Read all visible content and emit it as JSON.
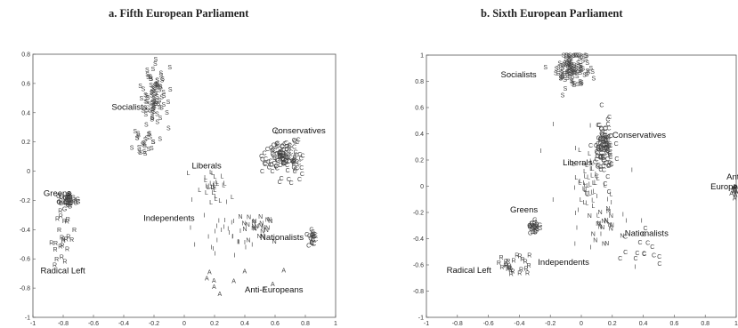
{
  "chart_data": [
    {
      "type": "scatter",
      "title": "a. Fifth European Parliament",
      "xlim": [
        -1,
        1
      ],
      "ylim": [
        -1,
        0.8
      ],
      "xticks": [
        "-1",
        "-0.8",
        "-0.6",
        "-0.4",
        "-0.2",
        "0",
        "0.2",
        "0.4",
        "0.6",
        "0.8",
        "1"
      ],
      "xtick_values": [
        -1,
        -0.8,
        -0.6,
        -0.4,
        -0.2,
        0,
        0.2,
        0.4,
        0.6,
        0.8,
        1
      ],
      "yticks": [
        "0.8",
        "0.6",
        "0.4",
        "0.2",
        "0",
        "-0.2",
        "-0.4",
        "-0.6",
        "-0.8",
        "-1"
      ],
      "ytick_values": [
        0.8,
        0.6,
        0.4,
        0.2,
        0,
        -0.2,
        -0.4,
        -0.6,
        -0.8,
        -1
      ],
      "groups": [
        {
          "name": "Socialists",
          "label_x": -0.48,
          "label_y": 0.42,
          "clusters": [
            {
              "letter": "S",
              "cx": -0.2,
              "cy": 0.5,
              "sx": 0.04,
              "sy": 0.1,
              "n": 85
            },
            {
              "letter": "S",
              "cx": -0.27,
              "cy": 0.2,
              "sx": 0.05,
              "sy": 0.05,
              "n": 25
            }
          ]
        },
        {
          "name": "Conservatives",
          "label_x": 0.58,
          "label_y": 0.26,
          "clusters": [
            {
              "letter": "C",
              "cx": 0.65,
              "cy": 0.1,
              "sx": 0.06,
              "sy": 0.06,
              "n": 120
            },
            {
              "letter": "C",
              "cx": 0.85,
              "cy": -0.45,
              "sx": 0.015,
              "sy": 0.03,
              "n": 22
            }
          ]
        },
        {
          "name": "Liberals",
          "label_x": 0.05,
          "label_y": 0.02,
          "clusters": [
            {
              "letter": "L",
              "cx": 0.18,
              "cy": -0.1,
              "sx": 0.05,
              "sy": 0.05,
              "n": 30
            }
          ]
        },
        {
          "name": "Greens",
          "label_x": -0.93,
          "label_y": -0.17,
          "clusters": [
            {
              "letter": "G",
              "cx": -0.76,
              "cy": -0.2,
              "sx": 0.03,
              "sy": 0.025,
              "n": 40
            }
          ]
        },
        {
          "name": "Independents",
          "label_x": -0.27,
          "label_y": -0.34,
          "clusters": [
            {
              "letter": "I",
              "cx": 0.3,
              "cy": -0.45,
              "sx": 0.1,
              "sy": 0.12,
              "n": 30
            }
          ]
        },
        {
          "name": "Nationalists",
          "label_x": 0.5,
          "label_y": -0.47,
          "clusters": [
            {
              "letter": "N",
              "cx": 0.47,
              "cy": -0.37,
              "sx": 0.06,
              "sy": 0.06,
              "n": 25
            }
          ]
        },
        {
          "name": "Radical Left",
          "label_x": -0.95,
          "label_y": -0.7,
          "clusters": [
            {
              "letter": "R",
              "cx": -0.8,
              "cy": -0.45,
              "sx": 0.03,
              "sy": 0.1,
              "n": 25
            }
          ]
        },
        {
          "name": "Anti-Europeans",
          "label_x": 0.4,
          "label_y": -0.83,
          "clusters": [
            {
              "letter": "A",
              "cx": 0.35,
              "cy": -0.7,
              "sx": 0.15,
              "sy": 0.08,
              "n": 10
            }
          ]
        }
      ]
    },
    {
      "type": "scatter",
      "title": "b. Sixth European Parliament",
      "xlim": [
        -1,
        1
      ],
      "ylim": [
        -1,
        1
      ],
      "xticks": [
        "-1",
        "-0.8",
        "-0.6",
        "-0.4",
        "-0.2",
        "0",
        "0.2",
        "0.4",
        "0.6",
        "0.8",
        "1"
      ],
      "xtick_values": [
        -1,
        -0.8,
        -0.6,
        -0.4,
        -0.2,
        0,
        0.2,
        0.4,
        0.6,
        0.8,
        1
      ],
      "yticks": [
        "1",
        "0.8",
        "0.6",
        "0.4",
        "0.2",
        "0",
        "-0.2",
        "-0.4",
        "-0.6",
        "-0.8",
        "-1"
      ],
      "ytick_values": [
        1,
        0.8,
        0.6,
        0.4,
        0.2,
        0,
        -0.2,
        -0.4,
        -0.6,
        -0.8,
        -1
      ],
      "groups": [
        {
          "name": "Socialists",
          "label_x": -0.52,
          "label_y": 0.83,
          "clusters": [
            {
              "letter": "S",
              "cx": -0.07,
              "cy": 0.9,
              "sx": 0.05,
              "sy": 0.06,
              "n": 110
            }
          ]
        },
        {
          "name": "Conservatives",
          "label_x": 0.2,
          "label_y": 0.37,
          "clusters": [
            {
              "letter": "C",
              "cx": 0.15,
              "cy": 0.3,
              "sx": 0.03,
              "sy": 0.1,
              "n": 110
            },
            {
              "letter": "C",
              "cx": 0.4,
              "cy": -0.5,
              "sx": 0.08,
              "sy": 0.06,
              "n": 15
            }
          ]
        },
        {
          "name": "Liberals",
          "label_x": -0.12,
          "label_y": 0.16,
          "clusters": [
            {
              "letter": "L",
              "cx": 0.05,
              "cy": 0.0,
              "sx": 0.05,
              "sy": 0.1,
              "n": 40
            }
          ]
        },
        {
          "name": "Greens",
          "label_x": -0.46,
          "label_y": -0.2,
          "clusters": [
            {
              "letter": "G",
              "cx": -0.3,
              "cy": -0.3,
              "sx": 0.02,
              "sy": 0.03,
              "n": 25
            }
          ]
        },
        {
          "name": "Independents",
          "label_x": -0.28,
          "label_y": -0.6,
          "clusters": [
            {
              "letter": "I",
              "cx": 0.1,
              "cy": -0.2,
              "sx": 0.15,
              "sy": 0.3,
              "n": 20
            }
          ]
        },
        {
          "name": "Nationalists",
          "label_x": 0.28,
          "label_y": -0.38,
          "clusters": [
            {
              "letter": "N",
              "cx": 0.15,
              "cy": -0.3,
              "sx": 0.05,
              "sy": 0.08,
              "n": 20
            }
          ]
        },
        {
          "name": "Radical Left",
          "label_x": -0.87,
          "label_y": -0.66,
          "clusters": [
            {
              "letter": "R",
              "cx": -0.42,
              "cy": -0.6,
              "sx": 0.05,
              "sy": 0.05,
              "n": 25
            }
          ]
        },
        {
          "name": "Anti-Europeans",
          "label_x": 0.88,
          "label_y": 0.05,
          "clusters": [
            {
              "letter": "A",
              "cx": 0.99,
              "cy": -0.04,
              "sx": 0.01,
              "sy": 0.03,
              "n": 12
            }
          ]
        }
      ]
    }
  ]
}
